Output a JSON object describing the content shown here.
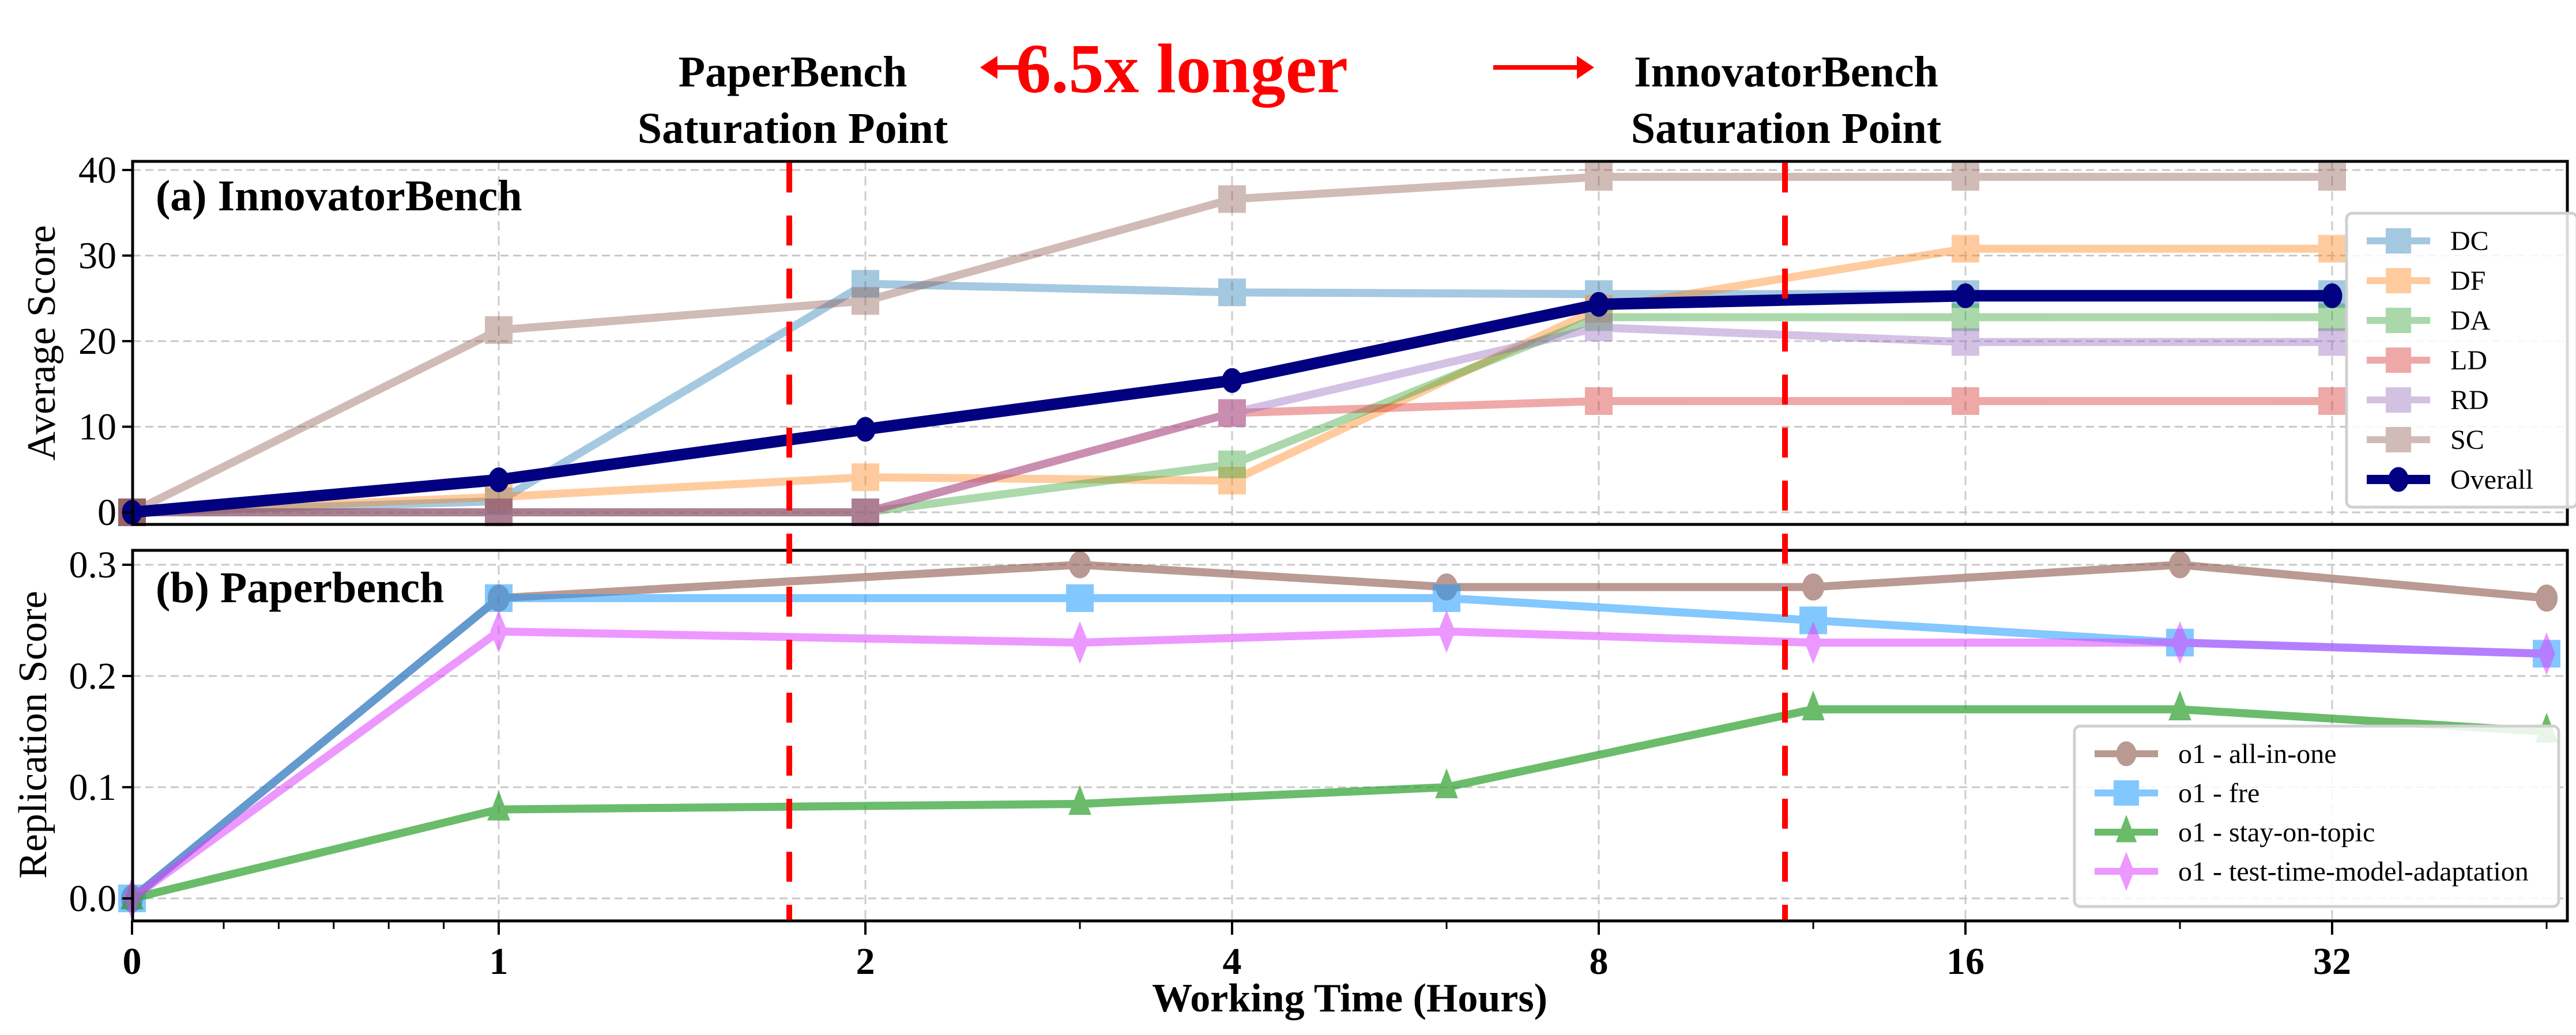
{
  "figure": {
    "annotations": {
      "left_label_line1": "PaperBench",
      "left_label_line2": "Saturation Point",
      "center_label": "6.5x longer",
      "right_label_line1": "InnovatorBench",
      "right_label_line2": "Saturation Point",
      "arrow_color": "#ff0000",
      "saturation_line_color": "#ff0000"
    },
    "xaxis": {
      "title": "Working Time (Hours)",
      "ticks": [
        "0",
        "1",
        "2",
        "4",
        "8",
        "16",
        "32"
      ]
    }
  },
  "chart_data": [
    {
      "type": "line",
      "title": "(a) InnovatorBench",
      "xlabel": "Working Time (Hours)",
      "ylabel": "Average Score",
      "xscale": "symlog (base 2)",
      "ylim": [
        -1.5,
        41
      ],
      "yticks": [
        "0",
        "10",
        "20",
        "30",
        "40"
      ],
      "grid": true,
      "legend_position": "center right",
      "x": [
        0,
        1,
        2,
        4,
        8,
        16,
        32
      ],
      "vertical_markers": [
        {
          "x": 1.75,
          "label": "PaperBench Saturation Point"
        },
        {
          "x": 11.5,
          "label": "InnovatorBench Saturation Point"
        }
      ],
      "series": [
        {
          "name": "DC",
          "color": "#1f77b4",
          "marker": "square",
          "alpha": 0.4,
          "values": [
            0,
            1.3,
            26.7,
            25.7,
            25.5,
            25.5,
            25.5
          ]
        },
        {
          "name": "DF",
          "color": "#ff7f0e",
          "marker": "square",
          "alpha": 0.4,
          "values": [
            0,
            1.8,
            4.1,
            3.7,
            23.8,
            30.8,
            30.8
          ]
        },
        {
          "name": "DA",
          "color": "#2ca02c",
          "marker": "square",
          "alpha": 0.4,
          "values": [
            0,
            0,
            0,
            5.6,
            22.8,
            22.8,
            22.8
          ]
        },
        {
          "name": "LD",
          "color": "#d62728",
          "marker": "square",
          "alpha": 0.4,
          "values": [
            0,
            0,
            0,
            11.6,
            13.0,
            13.0,
            13.0
          ]
        },
        {
          "name": "RD",
          "color": "#9467bd",
          "marker": "square",
          "alpha": 0.4,
          "values": [
            0,
            0,
            0,
            11.6,
            21.6,
            19.9,
            19.9
          ]
        },
        {
          "name": "SC",
          "color": "#8c564b",
          "marker": "square",
          "alpha": 0.4,
          "values": [
            0,
            21.3,
            24.7,
            36.6,
            39.2,
            39.2,
            39.2
          ]
        },
        {
          "name": "Overall",
          "color": "#000080",
          "marker": "circle",
          "alpha": 1.0,
          "values": [
            0,
            3.8,
            9.7,
            15.4,
            24.3,
            25.3,
            25.3
          ]
        }
      ]
    },
    {
      "type": "line",
      "title": "(b) Paperbench",
      "xlabel": "Working Time (Hours)",
      "ylabel": "Replication Score",
      "xscale": "symlog (base 2)",
      "ylim": [
        -0.02,
        0.31
      ],
      "yticks": [
        "0.0",
        "0.1",
        "0.2",
        "0.3"
      ],
      "grid": true,
      "legend_position": "lower right",
      "x": [
        0,
        1,
        3,
        6,
        12,
        24,
        48
      ],
      "series": [
        {
          "name": "o1 - all-in-one",
          "color": "#8c564b",
          "marker": "circle",
          "alpha": 0.6,
          "values": [
            0,
            0.27,
            0.3,
            0.28,
            0.28,
            0.3,
            0.27
          ]
        },
        {
          "name": "o1 - fre",
          "color": "#1e9bff",
          "marker": "square",
          "alpha": 0.55,
          "values": [
            0,
            0.27,
            0.27,
            0.27,
            0.25,
            0.23,
            0.22
          ]
        },
        {
          "name": "o1 - stay-on-topic",
          "color": "#2ca02c",
          "marker": "triangle",
          "alpha": 0.7,
          "values": [
            0,
            0.08,
            0.085,
            0.1,
            0.17,
            0.17,
            0.15
          ]
        },
        {
          "name": "o1 - test-time-model-adaptation",
          "color": "#dd44ff",
          "marker": "diamond",
          "alpha": 0.55,
          "values": [
            0,
            0.24,
            0.23,
            0.24,
            0.23,
            0.23,
            0.22
          ]
        }
      ]
    }
  ]
}
